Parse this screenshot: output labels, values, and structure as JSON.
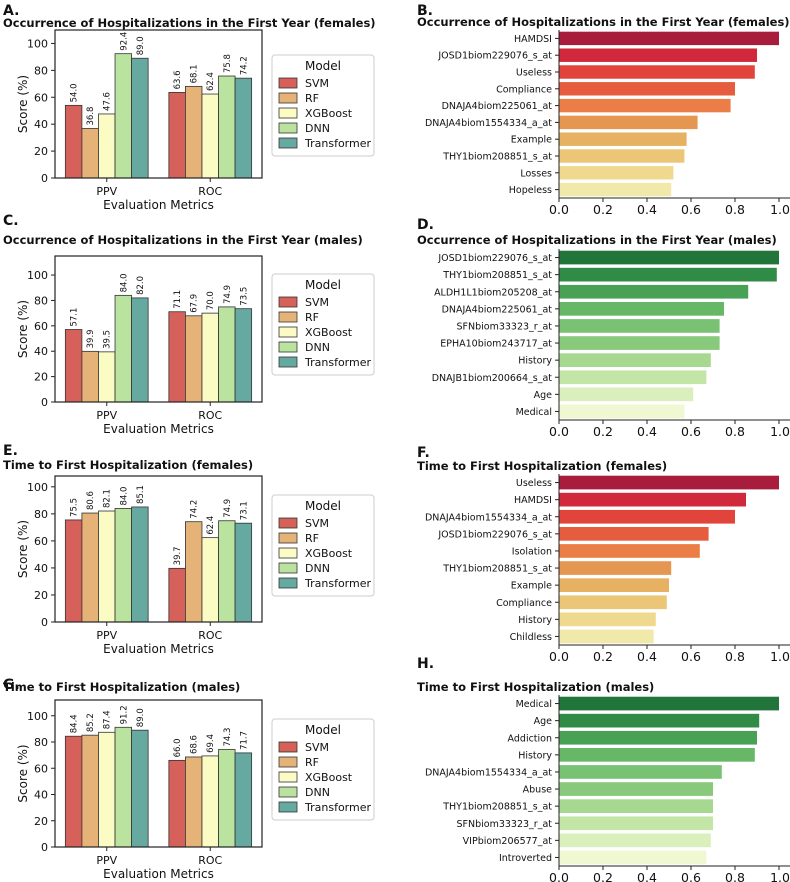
{
  "legend_title": "Model",
  "chart_data": [
    {
      "id": "bar-a",
      "panel": "A.",
      "type": "bar",
      "title": "Occurrence of Hospitalizations in the First Year (females)",
      "xlabel": "Evaluation Metrics",
      "ylabel": "Score (%)",
      "ylim": [
        0,
        110
      ],
      "yticks": [
        0,
        20,
        40,
        60,
        80,
        100
      ],
      "categories": [
        "PPV",
        "ROC"
      ],
      "series": [
        {
          "name": "SVM",
          "color": "#d6605a",
          "values": [
            54.0,
            63.6
          ]
        },
        {
          "name": "RF",
          "color": "#e5b378",
          "values": [
            36.8,
            68.1
          ]
        },
        {
          "name": "XGBoost",
          "color": "#fbfbc4",
          "values": [
            47.6,
            62.4
          ]
        },
        {
          "name": "DNN",
          "color": "#bbe3a0",
          "values": [
            92.4,
            75.8
          ]
        },
        {
          "name": "Transformer",
          "color": "#66a9a0",
          "values": [
            89.0,
            74.2
          ]
        }
      ],
      "value_labels": [
        [
          "54.0",
          "63.6"
        ],
        [
          "36.8",
          "68.1"
        ],
        [
          "47.6",
          "62.4"
        ],
        [
          "92.4",
          "75.8"
        ],
        [
          "89.0",
          "74.2"
        ]
      ],
      "legend": "right"
    },
    {
      "id": "bar-c",
      "panel": "C.",
      "type": "bar",
      "title": "Occurrence of Hospitalizations in the First Year (males)",
      "xlabel": "Evaluation Metrics",
      "ylabel": "Score (%)",
      "ylim": [
        0,
        115
      ],
      "yticks": [
        0,
        20,
        40,
        60,
        80,
        100
      ],
      "categories": [
        "PPV",
        "ROC"
      ],
      "series": [
        {
          "name": "SVM",
          "color": "#d6605a",
          "values": [
            57.1,
            71.1
          ]
        },
        {
          "name": "RF",
          "color": "#e5b378",
          "values": [
            39.9,
            67.9
          ]
        },
        {
          "name": "XGBoost",
          "color": "#fbfbc4",
          "values": [
            39.5,
            70.0
          ]
        },
        {
          "name": "DNN",
          "color": "#bbe3a0",
          "values": [
            84.0,
            74.9
          ]
        },
        {
          "name": "Transformer",
          "color": "#66a9a0",
          "values": [
            82.0,
            73.5
          ]
        }
      ],
      "value_labels": [
        [
          "57.1",
          "71.1"
        ],
        [
          "39.9",
          "67.9"
        ],
        [
          "39.5",
          "70.0"
        ],
        [
          "84.0",
          "74.9"
        ],
        [
          "82.0",
          "73.5"
        ]
      ],
      "legend": "right"
    },
    {
      "id": "bar-e",
      "panel": "E.",
      "type": "bar",
      "title": "Time to First Hospitalization (females)",
      "xlabel": "Evaluation Metrics",
      "ylabel": "Score (%)",
      "ylim": [
        0,
        108
      ],
      "yticks": [
        0,
        20,
        40,
        60,
        80,
        100
      ],
      "categories": [
        "PPV",
        "ROC"
      ],
      "series": [
        {
          "name": "SVM",
          "color": "#d6605a",
          "values": [
            75.5,
            39.7
          ]
        },
        {
          "name": "RF",
          "color": "#e5b378",
          "values": [
            80.6,
            74.2
          ]
        },
        {
          "name": "XGBoost",
          "color": "#fbfbc4",
          "values": [
            82.1,
            62.4
          ]
        },
        {
          "name": "DNN",
          "color": "#bbe3a0",
          "values": [
            84.0,
            74.9
          ]
        },
        {
          "name": "Transformer",
          "color": "#66a9a0",
          "values": [
            85.1,
            73.1
          ]
        }
      ],
      "value_labels": [
        [
          "75.5",
          "39.7"
        ],
        [
          "80.6",
          "74.2"
        ],
        [
          "82.1",
          "62.4"
        ],
        [
          "84.0",
          "74.9"
        ],
        [
          "85.1",
          "73.1"
        ]
      ],
      "legend": "right"
    },
    {
      "id": "bar-g",
      "panel": "G.",
      "type": "bar",
      "title": "Time to First Hospitalization (males)",
      "xlabel": "Evaluation Metrics",
      "ylabel": "Score (%)",
      "ylim": [
        0,
        112
      ],
      "yticks": [
        0,
        20,
        40,
        60,
        80,
        100
      ],
      "categories": [
        "PPV",
        "ROC"
      ],
      "series": [
        {
          "name": "SVM",
          "color": "#d6605a",
          "values": [
            84.4,
            66.0
          ]
        },
        {
          "name": "RF",
          "color": "#e5b378",
          "values": [
            85.2,
            68.6
          ]
        },
        {
          "name": "XGBoost",
          "color": "#fbfbc4",
          "values": [
            87.4,
            69.4
          ]
        },
        {
          "name": "DNN",
          "color": "#bbe3a0",
          "values": [
            91.2,
            74.3
          ]
        },
        {
          "name": "Transformer",
          "color": "#66a9a0",
          "values": [
            89.0,
            71.7
          ]
        }
      ],
      "value_labels": [
        [
          "84.4",
          "66.0"
        ],
        [
          "85.2",
          "68.6"
        ],
        [
          "87.4",
          "69.4"
        ],
        [
          "91.2",
          "74.3"
        ],
        [
          "89.0",
          "71.7"
        ]
      ],
      "legend": "right"
    },
    {
      "id": "barh-b",
      "panel": "B.",
      "type": "bar-horizontal",
      "title": "Occurrence of Hospitalizations in the First Year (females)",
      "xlim": [
        0,
        1.05
      ],
      "xticks": [
        0.0,
        0.2,
        0.4,
        0.6,
        0.8,
        1.0
      ],
      "xtick_labels": [
        "0.0",
        "0.2",
        "0.4",
        "0.6",
        "0.8",
        "1.0"
      ],
      "categories": [
        "HAMDSI",
        "JOSD1biom229076_s_at",
        "Useless",
        "Compliance",
        "DNAJA4biom225061_at",
        "DNAJA4biom1554334_a_at",
        "Example",
        "THY1biom208851_s_at",
        "Losses",
        "Hopeless"
      ],
      "values": [
        1.0,
        0.9,
        0.89,
        0.8,
        0.78,
        0.63,
        0.58,
        0.57,
        0.52,
        0.51
      ],
      "colors": [
        "#a81d3c",
        "#d1283b",
        "#e1443a",
        "#e65c3e",
        "#eb7d46",
        "#e59650",
        "#e7b163",
        "#ebc676",
        "#efd98e",
        "#f1e9a9"
      ]
    },
    {
      "id": "barh-d",
      "panel": "D.",
      "type": "bar-horizontal",
      "title": "Occurrence of Hospitalizations in the First Year (males)",
      "xlim": [
        0,
        1.05
      ],
      "xticks": [
        0.0,
        0.2,
        0.4,
        0.6,
        0.8,
        1.0
      ],
      "xtick_labels": [
        "0.0",
        "0.2",
        "0.4",
        "0.6",
        "0.8",
        "1.0"
      ],
      "categories": [
        "JOSD1biom229076_s_at",
        "THY1biom208851_s_at",
        "ALDH1L1biom205208_at",
        "DNAJA4biom225061_at",
        "SFNbiom33323_r_at",
        "EPHA10biom243717_at",
        "History",
        "DNAJB1biom200664_s_at",
        "Age",
        "Medical"
      ],
      "values": [
        1.0,
        0.99,
        0.86,
        0.75,
        0.73,
        0.73,
        0.69,
        0.67,
        0.61,
        0.57
      ],
      "colors": [
        "#22753a",
        "#2f8b46",
        "#48a155",
        "#66b867",
        "#79c273",
        "#88c97b",
        "#a6d890",
        "#c3e6a7",
        "#d9f0bc",
        "#f0f8d1"
      ]
    },
    {
      "id": "barh-f",
      "panel": "F.",
      "type": "bar-horizontal",
      "title": "Time to First Hospitalization (females)",
      "xlim": [
        0,
        1.05
      ],
      "xticks": [
        0.0,
        0.2,
        0.4,
        0.6,
        0.8,
        1.0
      ],
      "xtick_labels": [
        "0.0",
        "0.2",
        "0.4",
        "0.6",
        "0.8",
        "1.0"
      ],
      "categories": [
        "Useless",
        "HAMDSI",
        "DNAJA4biom1554334_a_at",
        "JOSD1biom229076_s_at",
        "Isolation",
        "THY1biom208851_s_at",
        "Example",
        "Compliance",
        "History",
        "Childless"
      ],
      "values": [
        1.0,
        0.85,
        0.8,
        0.68,
        0.64,
        0.51,
        0.5,
        0.49,
        0.44,
        0.43
      ],
      "colors": [
        "#a81d3c",
        "#d1283b",
        "#e1443a",
        "#e65c3e",
        "#eb7d46",
        "#e59650",
        "#e7b163",
        "#ebc676",
        "#efd98e",
        "#f1e9a9"
      ]
    },
    {
      "id": "barh-h",
      "panel": "H.",
      "type": "bar-horizontal",
      "title": "Time to First Hospitalization (males)",
      "xlim": [
        0,
        1.05
      ],
      "xticks": [
        0.0,
        0.2,
        0.4,
        0.6,
        0.8,
        1.0
      ],
      "xtick_labels": [
        "0.0",
        "0.2",
        "0.4",
        "0.6",
        "0.8",
        "1.0"
      ],
      "categories": [
        "Medical",
        "Age",
        "Addiction",
        "History",
        "DNAJA4biom1554334_a_at",
        "Abuse",
        "THY1biom208851_s_at",
        "SFNbiom33323_r_at",
        "VIPbiom206577_at",
        "Introverted"
      ],
      "values": [
        1.0,
        0.91,
        0.9,
        0.89,
        0.74,
        0.7,
        0.7,
        0.7,
        0.69,
        0.67
      ],
      "colors": [
        "#22753a",
        "#2f8b46",
        "#48a155",
        "#66b867",
        "#79c273",
        "#88c97b",
        "#a6d890",
        "#c3e6a7",
        "#d9f0bc",
        "#f0f8d1"
      ]
    }
  ]
}
